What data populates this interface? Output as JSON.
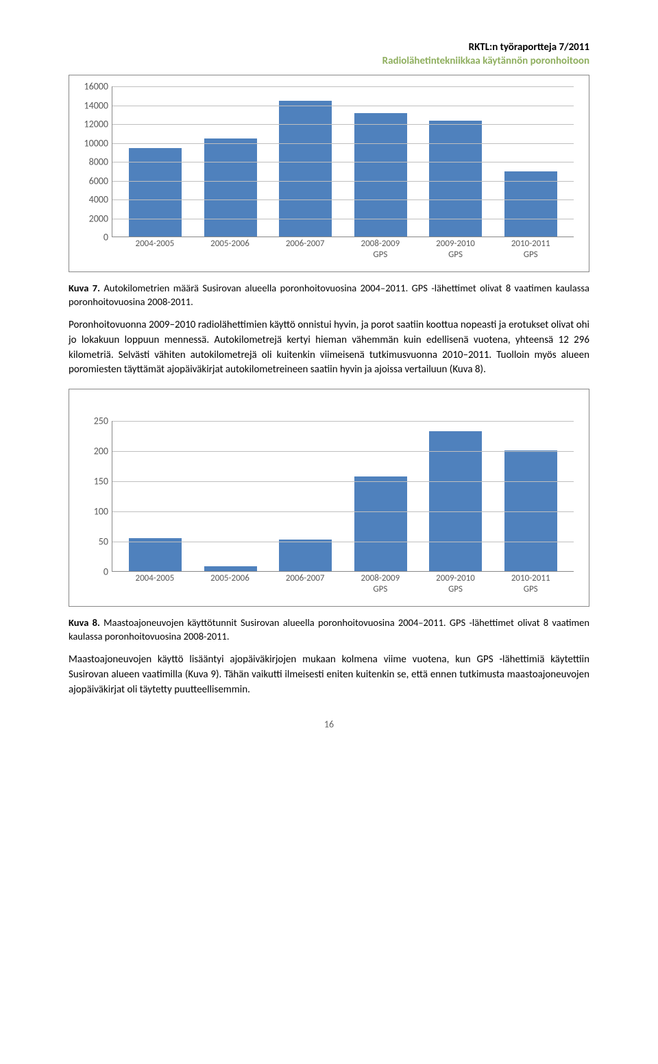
{
  "header": {
    "line1": "RKTL:n työraportteja 7/2011",
    "line2": "Radiolähetintekniikkaa käytännön poronhoitoon",
    "line2_color": "#8faf5f"
  },
  "chart1": {
    "type": "bar",
    "categories": [
      "2004-2005",
      "2005-2006",
      "2006-2007",
      "2008-2009\nGPS",
      "2009-2010\nGPS",
      "2010-2011\nGPS"
    ],
    "values": [
      9400,
      10400,
      14400,
      13100,
      12300,
      6900
    ],
    "bar_color": "#4f81bd",
    "background_color": "#ffffff",
    "grid_color": "#bfbfbf",
    "ylim": [
      0,
      16000
    ],
    "ytick_step": 2000,
    "yticks": [
      0,
      2000,
      4000,
      6000,
      8000,
      10000,
      12000,
      14000,
      16000
    ],
    "label_fontsize": 13,
    "axis_color": "#888888",
    "bar_width": 0.7
  },
  "caption1": {
    "bold": "Kuva 7.",
    "text": " Autokilometrien määrä Susirovan alueella poronhoitovuosina 2004–2011. GPS -lähettimet olivat 8 vaatimen kaulassa poronhoitovuosina 2008-2011."
  },
  "paragraph1": "Poronhoitovuonna 2009–2010 radiolähettimien käyttö onnistui hyvin, ja porot saatiin koottua nopeasti ja erotukset olivat ohi jo lokakuun loppuun mennessä. Autokilometrejä kertyi hieman vähemmän kuin edellisenä vuotena, yhteensä 12 296 kilometriä. Selvästi vähiten autokilometrejä oli kuitenkin viimeisenä tutkimusvuonna 2010–2011. Tuolloin myös alueen poromiesten täyttämät ajopäiväkirjat autokilometreineen saatiin hyvin ja ajoissa vertailuun (Kuva 8).",
  "chart2": {
    "type": "bar",
    "categories": [
      "2004-2005",
      "2005-2006",
      "2006-2007",
      "2008-2009\nGPS",
      "2009-2010\nGPS",
      "2010-2011\nGPS"
    ],
    "values": [
      55,
      8,
      53,
      157,
      232,
      200
    ],
    "bar_color": "#4f81bd",
    "background_color": "#ffffff",
    "grid_color": "#bfbfbf",
    "ylim": [
      0,
      250
    ],
    "ytick_step": 50,
    "yticks": [
      0,
      50,
      100,
      150,
      200,
      250
    ],
    "label_fontsize": 13,
    "axis_color": "#888888",
    "bar_width": 0.7
  },
  "caption2": {
    "bold": "Kuva 8.",
    "text": " Maastoajoneuvojen käyttötunnit Susirovan alueella poronhoitovuosina 2004–2011. GPS -lähettimet olivat 8 vaatimen kaulassa poronhoitovuosina 2008-2011."
  },
  "paragraph2": "Maastoajoneuvojen käyttö lisääntyi ajopäiväkirjojen mukaan kolmena viime vuotena, kun GPS -lähettimiä käytettiin Susirovan alueen vaatimilla (Kuva 9). Tähän vaikutti ilmeisesti eniten kuitenkin se, että ennen tutkimusta maastoajoneuvojen ajopäiväkirjat oli täytetty puutteellisemmin.",
  "page_number": "16"
}
